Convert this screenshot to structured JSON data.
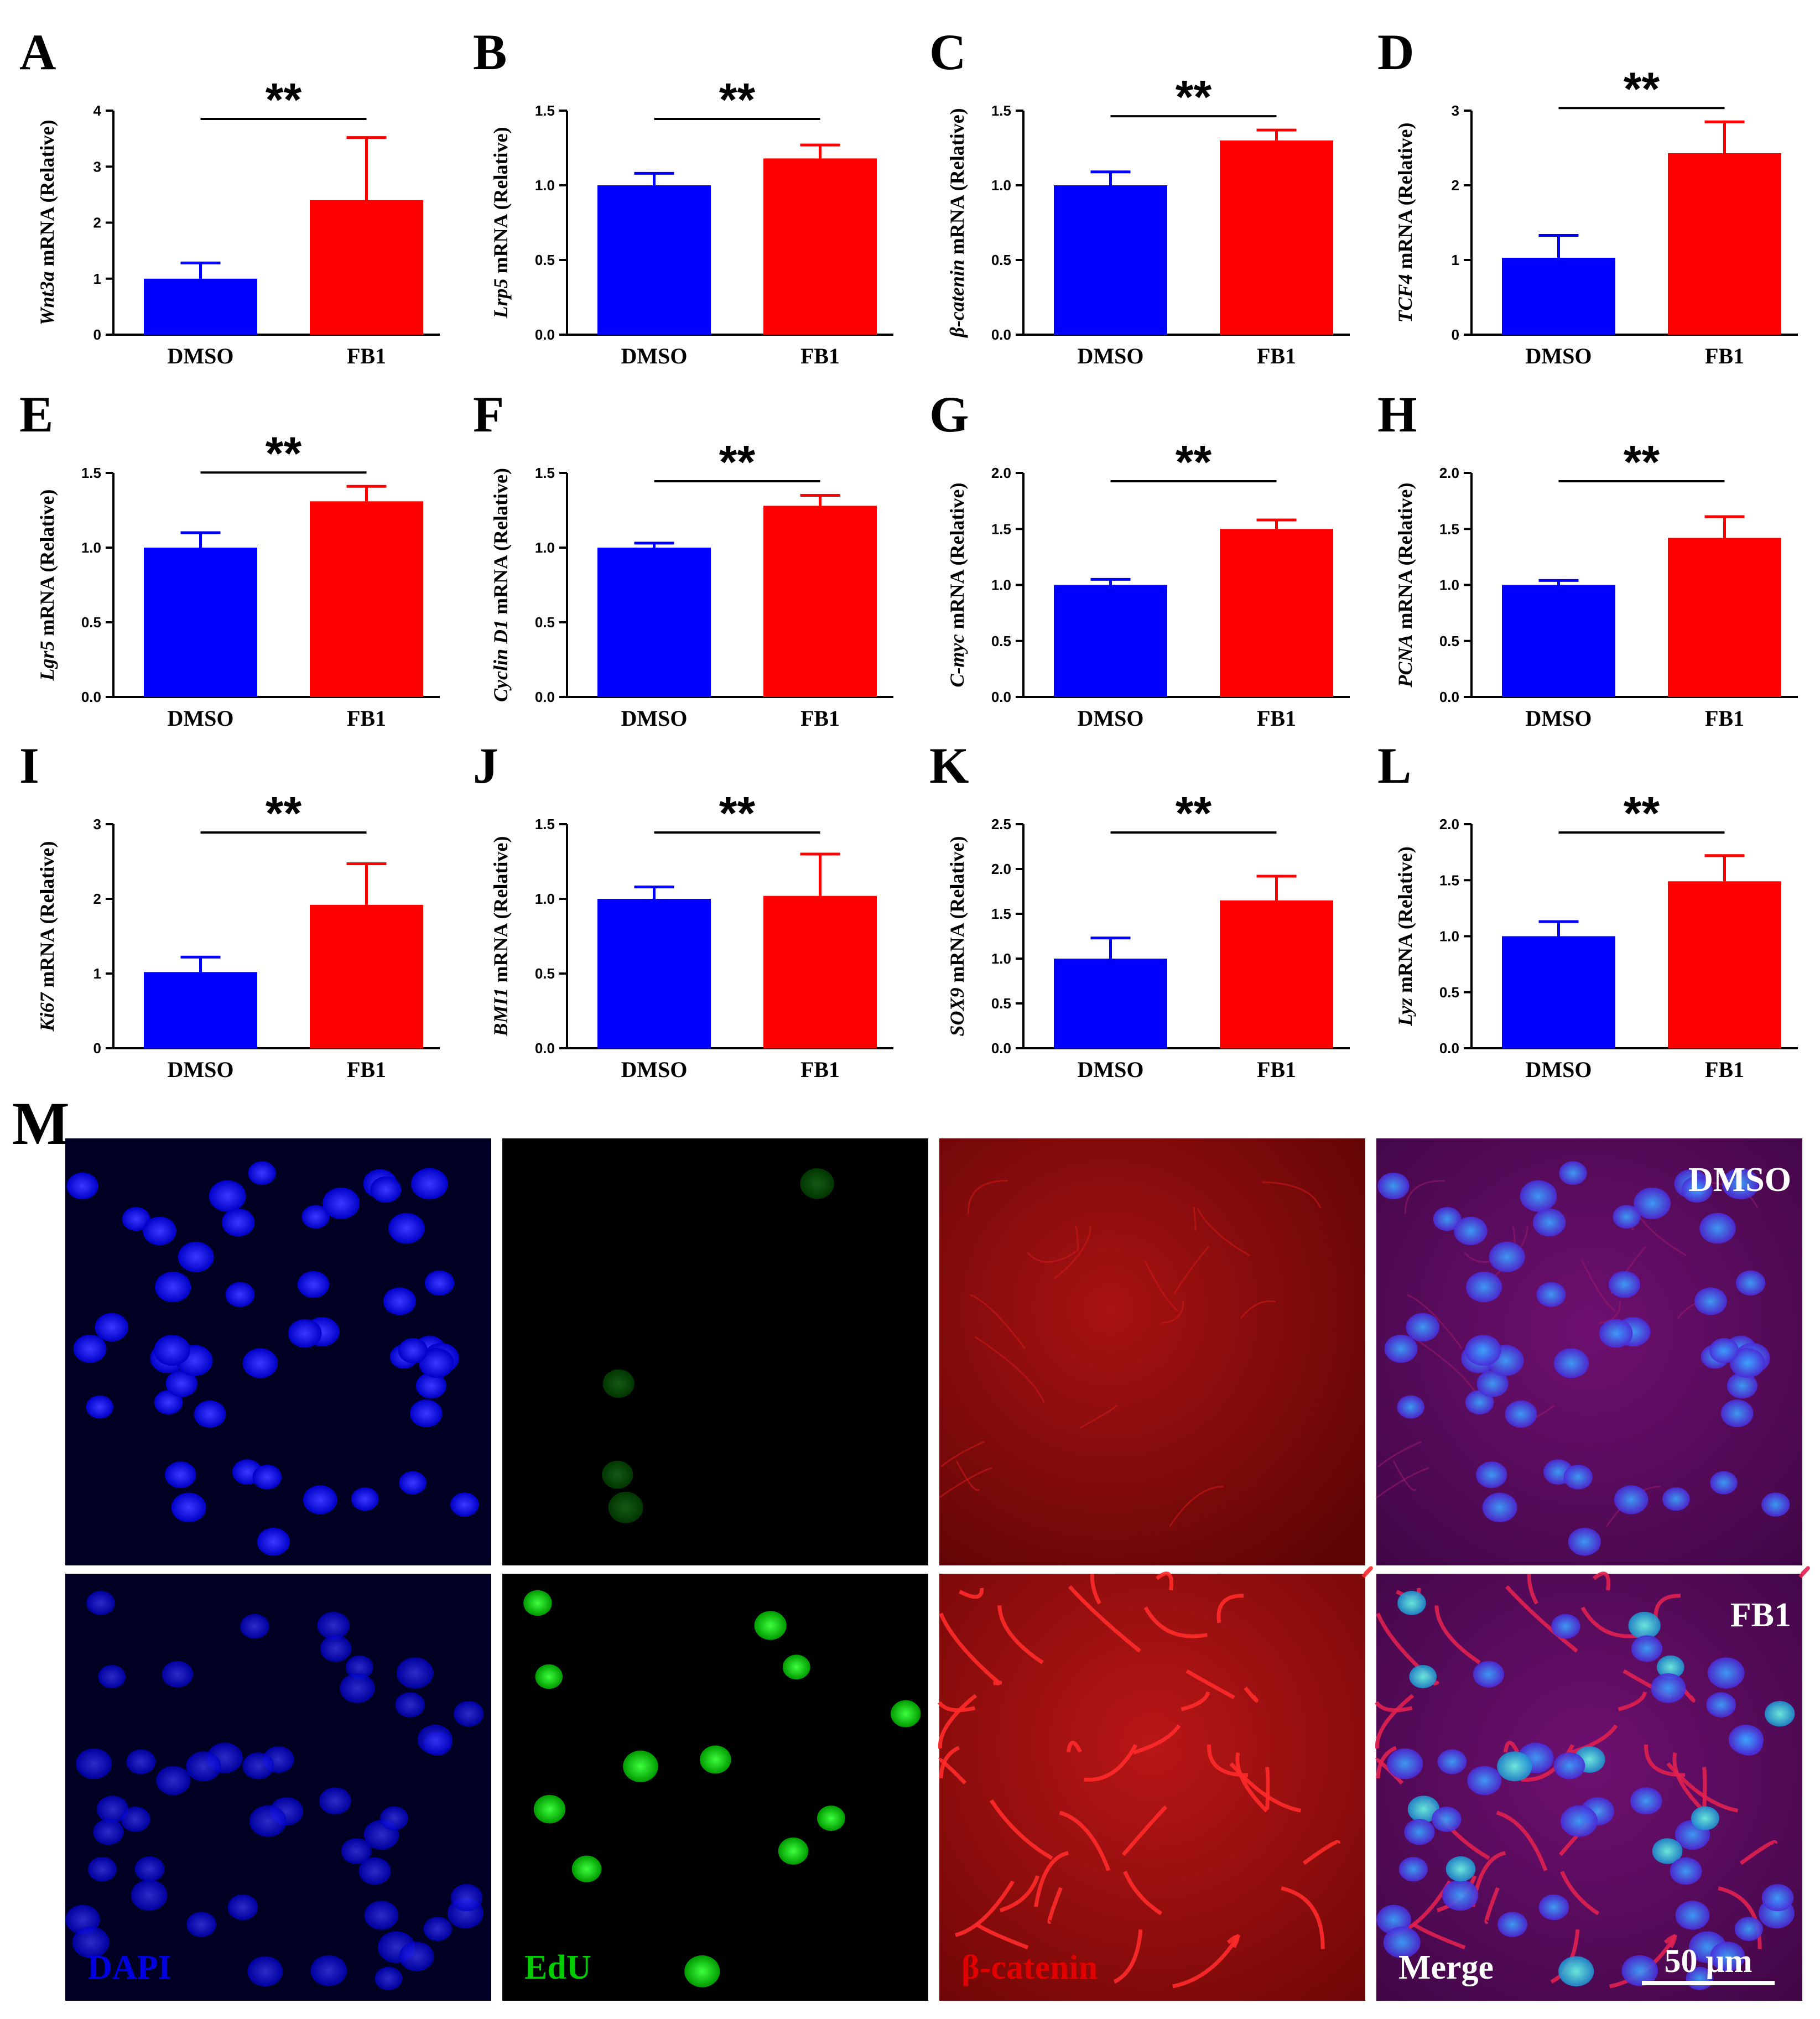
{
  "chart_data": [
    {
      "letter": "A",
      "type": "bar",
      "title": "",
      "gene": "Wnt3a",
      "ylabel_suffix": " mRNA (Relative)",
      "categories": [
        "DMSO",
        "FB1"
      ],
      "values": [
        1.0,
        2.4
      ],
      "errors": [
        0.28,
        1.12
      ],
      "ylim": [
        0,
        4
      ],
      "yticks": [
        "0",
        "1",
        "2",
        "3",
        "4"
      ],
      "significance": "**",
      "colors": [
        "#0000FF",
        "#FF0000"
      ]
    },
    {
      "letter": "B",
      "type": "bar",
      "title": "",
      "gene": "Lrp5",
      "ylabel_suffix": " mRNA (Relative)",
      "categories": [
        "DMSO",
        "FB1"
      ],
      "values": [
        1.0,
        1.18
      ],
      "errors": [
        0.08,
        0.09
      ],
      "ylim": [
        0,
        1.5
      ],
      "yticks": [
        "0.0",
        "0.5",
        "1.0",
        "1.5"
      ],
      "significance": "**",
      "colors": [
        "#0000FF",
        "#FF0000"
      ]
    },
    {
      "letter": "C",
      "type": "bar",
      "title": "",
      "gene": "β-catenin",
      "ylabel_suffix": " mRNA (Relative)",
      "categories": [
        "DMSO",
        "FB1"
      ],
      "values": [
        1.0,
        1.3
      ],
      "errors": [
        0.09,
        0.07
      ],
      "ylim": [
        0,
        1.5
      ],
      "yticks": [
        "0.0",
        "0.5",
        "1.0",
        "1.5"
      ],
      "significance": "**",
      "colors": [
        "#0000FF",
        "#FF0000"
      ]
    },
    {
      "letter": "D",
      "type": "bar",
      "title": "",
      "gene": "TCF4",
      "ylabel_suffix": " mRNA (Relative)",
      "categories": [
        "DMSO",
        "FB1"
      ],
      "values": [
        1.03,
        2.43
      ],
      "errors": [
        0.3,
        0.42
      ],
      "ylim": [
        0,
        3
      ],
      "yticks": [
        "0",
        "1",
        "2",
        "3"
      ],
      "significance": "**",
      "colors": [
        "#0000FF",
        "#FF0000"
      ]
    },
    {
      "letter": "E",
      "type": "bar",
      "title": "",
      "gene": "Lgr5",
      "ylabel_suffix": " mRNA (Relative)",
      "categories": [
        "DMSO",
        "FB1"
      ],
      "values": [
        1.0,
        1.31
      ],
      "errors": [
        0.1,
        0.1
      ],
      "ylim": [
        0,
        1.5
      ],
      "yticks": [
        "0.0",
        "0.5",
        "1.0",
        "1.5"
      ],
      "significance": "**",
      "colors": [
        "#0000FF",
        "#FF0000"
      ]
    },
    {
      "letter": "F",
      "type": "bar",
      "title": "",
      "gene": "Cyclin D1",
      "ylabel_suffix": " mRNA (Relative)",
      "categories": [
        "DMSO",
        "FB1"
      ],
      "values": [
        1.0,
        1.28
      ],
      "errors": [
        0.03,
        0.07
      ],
      "ylim": [
        0,
        1.5
      ],
      "yticks": [
        "0.0",
        "0.5",
        "1.0",
        "1.5"
      ],
      "significance": "**",
      "colors": [
        "#0000FF",
        "#FF0000"
      ]
    },
    {
      "letter": "G",
      "type": "bar",
      "title": "",
      "gene": "C-myc",
      "ylabel_suffix": " mRNA (Relative)",
      "categories": [
        "DMSO",
        "FB1"
      ],
      "values": [
        1.0,
        1.5
      ],
      "errors": [
        0.05,
        0.08
      ],
      "ylim": [
        0,
        2
      ],
      "yticks": [
        "0.0",
        "0.5",
        "1.0",
        "1.5",
        "2.0"
      ],
      "significance": "**",
      "colors": [
        "#0000FF",
        "#FF0000"
      ]
    },
    {
      "letter": "H",
      "type": "bar",
      "title": "",
      "gene": "PCNA",
      "ylabel_suffix": " mRNA (Relative)",
      "categories": [
        "DMSO",
        "FB1"
      ],
      "values": [
        1.0,
        1.42
      ],
      "errors": [
        0.04,
        0.19
      ],
      "ylim": [
        0,
        2
      ],
      "yticks": [
        "0.0",
        "0.5",
        "1.0",
        "1.5",
        "2.0"
      ],
      "significance": "**",
      "colors": [
        "#0000FF",
        "#FF0000"
      ]
    },
    {
      "letter": "I",
      "type": "bar",
      "title": "",
      "gene": "Ki67",
      "ylabel_suffix": " mRNA (Relative)",
      "categories": [
        "DMSO",
        "FB1"
      ],
      "values": [
        1.02,
        1.92
      ],
      "errors": [
        0.2,
        0.55
      ],
      "ylim": [
        0,
        3
      ],
      "yticks": [
        "0",
        "1",
        "2",
        "3"
      ],
      "significance": "**",
      "colors": [
        "#0000FF",
        "#FF0000"
      ]
    },
    {
      "letter": "J",
      "type": "bar",
      "title": "",
      "gene": "BMI1",
      "ylabel_suffix": " mRNA (Relative)",
      "categories": [
        "DMSO",
        "FB1"
      ],
      "values": [
        1.0,
        1.02
      ],
      "errors": [
        0.08,
        0.28
      ],
      "ylim": [
        0,
        1.5
      ],
      "yticks": [
        "0.0",
        "0.5",
        "1.0",
        "1.5"
      ],
      "significance": "**",
      "colors": [
        "#0000FF",
        "#FF0000"
      ]
    },
    {
      "letter": "K",
      "type": "bar",
      "title": "",
      "gene": "SOX9",
      "ylabel_suffix": " mRNA (Relative)",
      "categories": [
        "DMSO",
        "FB1"
      ],
      "values": [
        1.0,
        1.65
      ],
      "errors": [
        0.23,
        0.27
      ],
      "ylim": [
        0,
        2.5
      ],
      "yticks": [
        "0.0",
        "0.5",
        "1.0",
        "1.5",
        "2.0",
        "2.5"
      ],
      "significance": "**",
      "colors": [
        "#0000FF",
        "#FF0000"
      ]
    },
    {
      "letter": "L",
      "type": "bar",
      "title": "",
      "gene": "Lyz",
      "ylabel_suffix": " mRNA (Relative)",
      "categories": [
        "DMSO",
        "FB1"
      ],
      "values": [
        1.0,
        1.49
      ],
      "errors": [
        0.13,
        0.23
      ],
      "ylim": [
        0,
        2
      ],
      "yticks": [
        "0.0",
        "0.5",
        "1.0",
        "1.5",
        "2.0"
      ],
      "significance": "**",
      "colors": [
        "#0000FF",
        "#FF0000"
      ]
    }
  ],
  "microscopy": {
    "panel_letter": "M",
    "row_labels": [
      "DMSO",
      "FB1"
    ],
    "channel_labels": [
      {
        "text": "DAPI",
        "color": "#0000E0"
      },
      {
        "text": "EdU",
        "color": "#00CC00"
      },
      {
        "text": "β-catenin",
        "color": "#E00000"
      },
      {
        "text": "Merge",
        "color": "#FFFFFF"
      }
    ],
    "scale_bar_label": "50 μm"
  }
}
